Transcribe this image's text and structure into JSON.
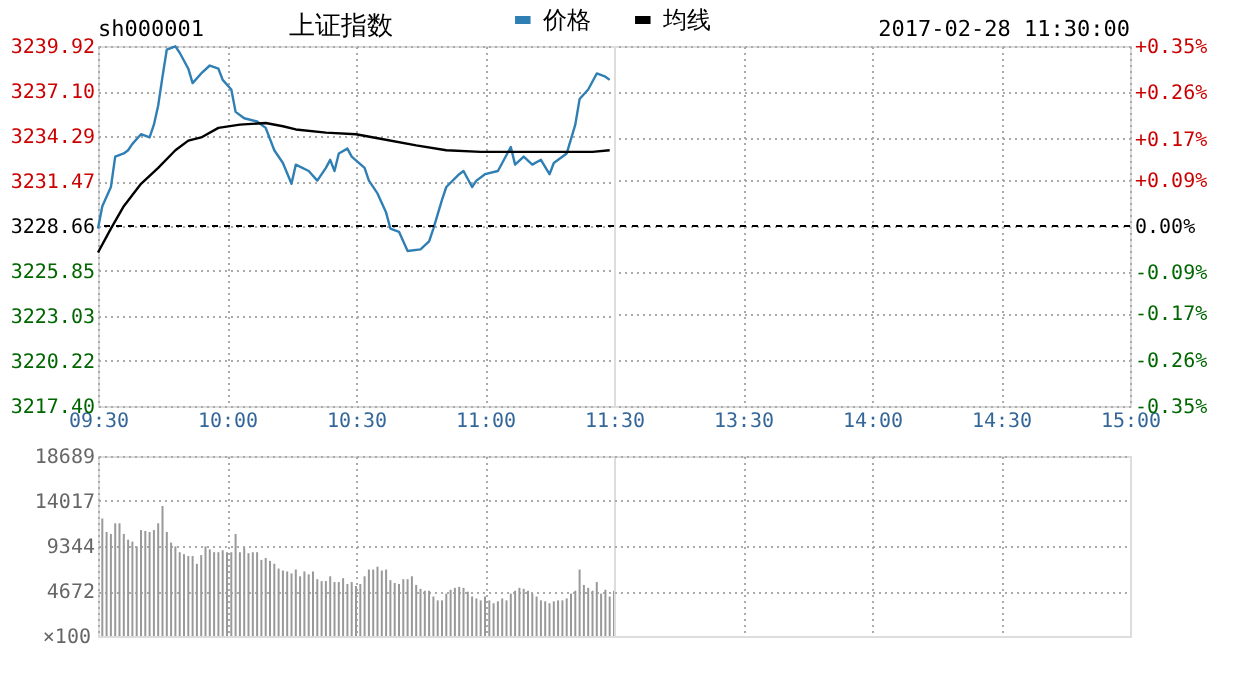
{
  "chart_data": [
    {
      "type": "line",
      "title": "上证指数",
      "annotations": [
        "sh000001"
      ],
      "xlim": [
        9.5,
        11.5
      ],
      "xticks": [
        {
          "value": 9.5,
          "label": "09:30"
        },
        {
          "value": 10,
          "label": "10:00"
        },
        {
          "value": 10.5,
          "label": "10:30"
        },
        {
          "value": 11,
          "label": "11:00"
        },
        {
          "value": 11.5,
          "label": "11:30"
        }
      ],
      "ylim": [
        3217.4,
        3239.92
      ],
      "yticks": [
        {
          "value": 3217.4,
          "label": "3217.40"
        },
        3220.22,
        3223.03,
        3225.85,
        3228.66,
        3231.47,
        3234.29,
        {
          "value": 3237.1,
          "label": "3237.10"
        },
        3239.92
      ],
      "ref_lines": [
        {
          "axis": "y",
          "value": 3228.66,
          "color": "#000000",
          "line_style": "dashed"
        }
      ],
      "grid": true,
      "legend": "top",
      "marker": "none",
      "line_style": "solid",
      "series": [
        {
          "name": "价格",
          "color": "#2f7fb5",
          "x": [
            9.5,
            9.5167,
            9.55,
            9.5667,
            9.6,
            9.6167,
            9.6333,
            9.6667,
            9.7,
            9.7167,
            9.7333,
            9.75,
            9.7667,
            9.8,
            9.8167,
            9.85,
            9.8667,
            9.9,
            9.9333,
            9.9667,
            9.9833,
            10.0167,
            10.0333,
            10.0667,
            10.1167,
            10.15,
            10.1833,
            10.2167,
            10.25,
            10.2667,
            10.3167,
            10.35,
            10.3833,
            10.4,
            10.4167,
            10.4333,
            10.4667,
            10.4833,
            10.5333,
            10.55,
            10.5833,
            10.6167,
            10.6333,
            10.6667,
            10.7,
            10.75,
            10.7833,
            10.8,
            10.8333,
            10.85,
            10.9,
            10.9167,
            10.95,
            10.9667,
            11,
            11.05,
            11.0667,
            11.1,
            11.1167,
            11.15,
            11.1833,
            11.2167,
            11.25,
            11.2667,
            11.3167,
            11.35,
            11.3667,
            11.4,
            11.4333,
            11.4667,
            11.4833
          ],
          "values": [
            3228.5,
            3229.9,
            3231.1,
            3233.0,
            3233.2,
            3233.4,
            3233.8,
            3234.4,
            3234.2,
            3235.0,
            3236.2,
            3238.0,
            3239.7,
            3239.9,
            3239.5,
            3238.5,
            3237.6,
            3238.2,
            3238.7,
            3238.5,
            3237.8,
            3237.2,
            3235.8,
            3235.4,
            3235.2,
            3234.8,
            3233.4,
            3232.6,
            3231.3,
            3232.5,
            3232.1,
            3231.5,
            3232.3,
            3232.8,
            3232.1,
            3233.2,
            3233.5,
            3233.0,
            3232.3,
            3231.5,
            3230.7,
            3229.5,
            3228.5,
            3228.3,
            3227.1,
            3227.2,
            3227.7,
            3228.5,
            3230.3,
            3231.1,
            3231.9,
            3232.1,
            3231.1,
            3231.5,
            3231.9,
            3232.1,
            3232.6,
            3233.6,
            3232.5,
            3233.0,
            3232.5,
            3232.8,
            3231.9,
            3232.6,
            3233.2,
            3235.0,
            3236.6,
            3237.2,
            3238.2,
            3238.0,
            3237.8
          ]
        },
        {
          "name": "均线",
          "color": "#000000",
          "x": [
            9.5,
            9.55,
            9.6,
            9.6667,
            9.7333,
            9.8,
            9.85,
            9.9,
            9.9667,
            10.05,
            10.15,
            10.2167,
            10.2667,
            10.3833,
            10.5,
            10.6,
            10.7333,
            10.85,
            10.9833,
            11.1,
            11.3167,
            11.4167,
            11.4833
          ],
          "values": [
            3227.0,
            3228.5,
            3229.9,
            3231.3,
            3232.3,
            3233.4,
            3234.0,
            3234.2,
            3234.8,
            3235.0,
            3235.1,
            3234.9,
            3234.7,
            3234.5,
            3234.4,
            3234.1,
            3233.7,
            3233.4,
            3233.3,
            3233.3,
            3233.3,
            3233.3,
            3233.4
          ]
        }
      ]
    },
    {
      "type": "line",
      "annotations": [
        "2017-02-28 11:30:00"
      ],
      "xlim": [
        13,
        15
      ],
      "xticks": [
        {
          "value": 13.5,
          "label": "13:30"
        },
        {
          "value": 14,
          "label": "14:00"
        },
        {
          "value": 14.5,
          "label": "14:30"
        },
        {
          "value": 15,
          "label": "15:00"
        }
      ],
      "y2lim": [
        -0.35,
        0.35
      ],
      "y2ticks": [
        {
          "value": -0.35,
          "label": "-0.35%"
        },
        {
          "value": -0.26,
          "label": "-0.26%"
        },
        {
          "value": -0.17,
          "label": "-0.17%"
        },
        {
          "value": -0.09,
          "label": "-0.09%"
        },
        {
          "value": 0,
          "label": "0.00%"
        },
        {
          "value": 0.09,
          "label": "+0.09%"
        },
        {
          "value": 0.17,
          "label": "+0.17%"
        },
        {
          "value": 0.26,
          "label": "+0.26%"
        },
        {
          "value": 0.35,
          "label": "+0.35%"
        }
      ],
      "ref_lines": [
        {
          "axis": "y2",
          "value": 0,
          "color": "#000000",
          "line_style": "dashed"
        }
      ],
      "grid": true
    },
    {
      "type": "bar",
      "color": "#999999",
      "grid": true,
      "tick_labels": "y",
      "ylabel": "×100",
      "xlim": [
        9.5,
        11.5
      ],
      "xticks": [
        {
          "value": 9.5,
          "label": null
        },
        {
          "value": 10,
          "label": null
        },
        {
          "value": 10.5,
          "label": null
        },
        {
          "value": 11,
          "label": null
        },
        {
          "value": 11.5,
          "label": null
        }
      ],
      "ylim": [
        0,
        18689
      ],
      "yticks": [
        4672,
        9344,
        14017,
        18689
      ],
      "x": [
        9.5167,
        9.5333,
        9.55,
        9.5667,
        9.5833,
        9.6,
        9.6167,
        9.6333,
        9.65,
        9.6667,
        9.6833,
        9.7,
        9.7167,
        9.7333,
        9.75,
        9.7667,
        9.7833,
        9.8,
        9.8167,
        9.8333,
        9.85,
        9.8667,
        9.8833,
        9.9,
        9.9167,
        9.9333,
        9.95,
        9.9667,
        9.9833,
        10.0,
        10.0167,
        10.0333,
        10.05,
        10.0667,
        10.0833,
        10.1,
        10.1167,
        10.1333,
        10.15,
        10.1667,
        10.1833,
        10.2,
        10.2167,
        10.2333,
        10.25,
        10.2667,
        10.2833,
        10.3,
        10.3167,
        10.3333,
        10.35,
        10.3667,
        10.3833,
        10.4,
        10.4167,
        10.4333,
        10.45,
        10.4667,
        10.4833,
        10.5,
        10.5167,
        10.5333,
        10.55,
        10.5667,
        10.5833,
        10.6,
        10.6167,
        10.6333,
        10.65,
        10.6667,
        10.6833,
        10.7,
        10.7167,
        10.7333,
        10.75,
        10.7667,
        10.7833,
        10.8,
        10.8167,
        10.8333,
        10.85,
        10.8667,
        10.8833,
        10.9,
        10.9167,
        10.9333,
        10.95,
        10.9667,
        10.9833,
        11.0,
        11.0167,
        11.0333,
        11.05,
        11.0667,
        11.0833,
        11.1,
        11.1167,
        11.1333,
        11.15,
        11.1667,
        11.1833,
        11.2,
        11.2167,
        11.2333,
        11.25,
        11.2667,
        11.2833,
        11.3,
        11.3167,
        11.3333,
        11.35,
        11.3667,
        11.3833,
        11.4,
        11.4167,
        11.4333,
        11.45,
        11.4667,
        11.4833,
        11.5
      ],
      "values": [
        12200,
        10800,
        10600,
        11700,
        11700,
        10600,
        10000,
        9800,
        9300,
        11000,
        10900,
        10800,
        11000,
        11700,
        13500,
        10800,
        9700,
        9300,
        8700,
        8500,
        8300,
        8300,
        7500,
        8400,
        9300,
        9000,
        8700,
        8700,
        8900,
        8700,
        8700,
        10600,
        8700,
        9200,
        8600,
        8700,
        8700,
        7900,
        8100,
        7800,
        7500,
        7000,
        6800,
        6700,
        6500,
        6900,
        6200,
        6700,
        6400,
        6700,
        5900,
        5700,
        5700,
        6200,
        5600,
        5600,
        6000,
        5400,
        5600,
        5200,
        5400,
        6200,
        6900,
        6900,
        7200,
        6800,
        6900,
        5800,
        5500,
        5400,
        5900,
        5900,
        6200,
        5300,
        4900,
        4700,
        4700,
        4100,
        3700,
        3700,
        4400,
        4800,
        5000,
        5100,
        5000,
        4600,
        4100,
        3900,
        3700,
        4100,
        3700,
        3400,
        3600,
        3900,
        3700,
        4400,
        4700,
        5000,
        4900,
        4700,
        4400,
        4100,
        3700,
        3600,
        3400,
        3600,
        3700,
        3700,
        3900,
        4400,
        4700,
        6900,
        5300,
        5000,
        4700,
        5600,
        4400,
        4800,
        4100,
        4700
      ]
    },
    {
      "type": "bar",
      "color": "#999999",
      "grid": true,
      "tick_labels": false,
      "xlim": [
        13,
        15
      ],
      "xticks": [
        {
          "value": 13.5,
          "label": null
        },
        {
          "value": 14,
          "label": null
        },
        {
          "value": 14.5,
          "label": null
        }
      ],
      "ylim": [
        0,
        18689
      ],
      "yticks": [
        4672,
        9344,
        14017,
        18689
      ]
    }
  ]
}
